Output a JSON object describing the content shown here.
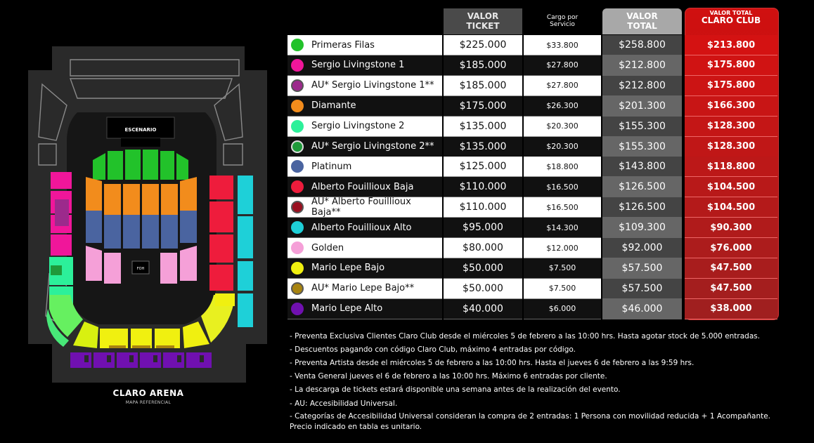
{
  "map": {
    "stage_label": "ESCENARIO",
    "foh_label": "FOH",
    "venue_name": "CLARO ARENA",
    "venue_sub": "MAPA REFERENCIAL"
  },
  "table": {
    "headers": {
      "ticket_line1": "VALOR",
      "ticket_line2": "TICKET",
      "cargo_line1": "Cargo por",
      "cargo_line2": "Servicio",
      "total_line1": "VALOR",
      "total_line2": "TOTAL",
      "club_line1": "VALOR TOTAL",
      "club_line2": "CLARO CLUB"
    },
    "rows": [
      {
        "name": "Primeras Filas",
        "color": "#22c22a",
        "ring": false,
        "ticket": "$225.000",
        "cargo": "$33.800",
        "total": "$258.800",
        "club": "$213.800"
      },
      {
        "name": "Sergio Livingstone 1",
        "color": "#f0169a",
        "ring": false,
        "ticket": "$185.000",
        "cargo": "$27.800",
        "total": "$212.800",
        "club": "$175.800"
      },
      {
        "name": "AU* Sergio Livingstone 1**",
        "color": "#9c2a8c",
        "ring": true,
        "ticket": "$185.000",
        "cargo": "$27.800",
        "total": "$212.800",
        "club": "$175.800"
      },
      {
        "name": "Diamante",
        "color": "#f28c1c",
        "ring": false,
        "ticket": "$175.000",
        "cargo": "$26.300",
        "total": "$201.300",
        "club": "$166.300"
      },
      {
        "name": "Sergio Livingstone 2",
        "color": "#2cf09a",
        "ring": false,
        "ticket": "$135.000",
        "cargo": "$20.300",
        "total": "$155.300",
        "club": "$128.300"
      },
      {
        "name": "AU* Sergio Livingstone 2**",
        "color": "#1f9a3a",
        "ring": true,
        "ticket": "$135.000",
        "cargo": "$20.300",
        "total": "$155.300",
        "club": "$128.300"
      },
      {
        "name": "Platinum",
        "color": "#4a64a0",
        "ring": false,
        "ticket": "$125.000",
        "cargo": "$18.800",
        "total": "$143.800",
        "club": "$118.800"
      },
      {
        "name": "Alberto Fouillioux Baja",
        "color": "#ee1c3c",
        "ring": false,
        "ticket": "$110.000",
        "cargo": "$16.500",
        "total": "$126.500",
        "club": "$104.500"
      },
      {
        "name": "AU* Alberto Fouillioux Baja**",
        "color": "#9a1020",
        "ring": true,
        "ticket": "$110.000",
        "cargo": "$16.500",
        "total": "$126.500",
        "club": "$104.500"
      },
      {
        "name": "Alberto Fouillioux Alto",
        "color": "#1ed0d8",
        "ring": false,
        "ticket": "$95.000",
        "cargo": "$14.300",
        "total": "$109.300",
        "club": "$90.300"
      },
      {
        "name": "Golden",
        "color": "#f5a0d8",
        "ring": false,
        "ticket": "$80.000",
        "cargo": "$12.000",
        "total": "$92.000",
        "club": "$76.000"
      },
      {
        "name": "Mario Lepe Bajo",
        "color": "#f0f010",
        "ring": false,
        "ticket": "$50.000",
        "cargo": "$7.500",
        "total": "$57.500",
        "club": "$47.500"
      },
      {
        "name": "AU* Mario Lepe Bajo**",
        "color": "#a88410",
        "ring": true,
        "ticket": "$50.000",
        "cargo": "$7.500",
        "total": "$57.500",
        "club": "$47.500"
      },
      {
        "name": "Mario Lepe Alto",
        "color": "#7010b0",
        "ring": false,
        "ticket": "$40.000",
        "cargo": "$6.000",
        "total": "$46.000",
        "club": "$38.000"
      }
    ]
  },
  "notes": [
    "- Preventa Exclusiva Clientes Claro Club desde el miércoles 5 de febrero a las 10:00 hrs. Hasta agotar stock de 5.000 entradas.",
    "- Descuentos pagando con código Claro Club, máximo 4 entradas por código.",
    "- Preventa Artista desde el miércoles 5 de febrero a las 10:00 hrs. Hasta el jueves 6 de febrero a las 9:59 hrs.",
    "- Venta General jueves el 6 de febrero a las 10:00 hrs. Máximo 6 entradas por cliente.",
    "- La descarga de tickets estará disponible una semana antes de la realización del evento.",
    "- AU: Accesibilidad Universal.",
    "- Categorías de Accesibilidad Universal consideran la compra de 2 entradas: 1 Persona con movilidad reducida + 1 Acompañante. Precio indicado en tabla es unitario."
  ]
}
